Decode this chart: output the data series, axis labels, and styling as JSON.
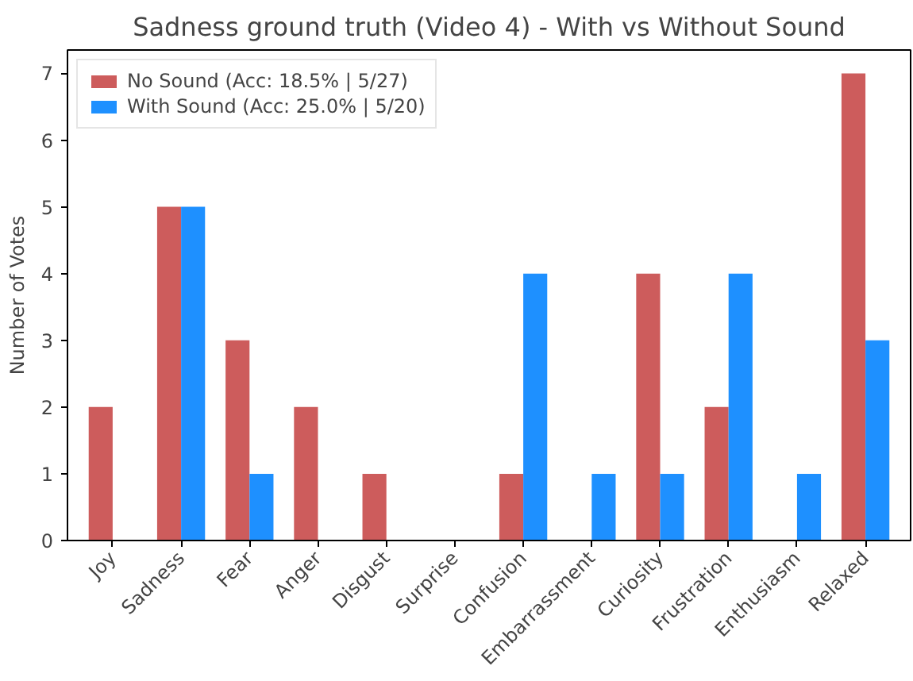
{
  "chart_data": {
    "type": "bar",
    "title": "Sadness ground truth (Video 4) - With vs Without Sound",
    "ylabel": "Number of Votes",
    "categories": [
      "Joy",
      "Sadness",
      "Fear",
      "Anger",
      "Disgust",
      "Surprise",
      "Confusion",
      "Embarrassment",
      "Curiosity",
      "Frustration",
      "Enthusiasm",
      "Relaxed"
    ],
    "series": [
      {
        "name": "No Sound (Acc: 18.5% | 5/27)",
        "color": "#cd5c5c",
        "values": [
          2,
          5,
          3,
          2,
          1,
          0,
          1,
          0,
          4,
          2,
          0,
          7
        ]
      },
      {
        "name": "With Sound (Acc: 25.0% | 5/20)",
        "color": "#1e90ff",
        "values": [
          0,
          5,
          1,
          0,
          0,
          0,
          4,
          1,
          1,
          4,
          1,
          3
        ]
      }
    ],
    "ylim": [
      0,
      7.35
    ],
    "yticks": [
      0,
      1,
      2,
      3,
      4,
      5,
      6,
      7
    ],
    "grid": false,
    "legend": "top left"
  }
}
